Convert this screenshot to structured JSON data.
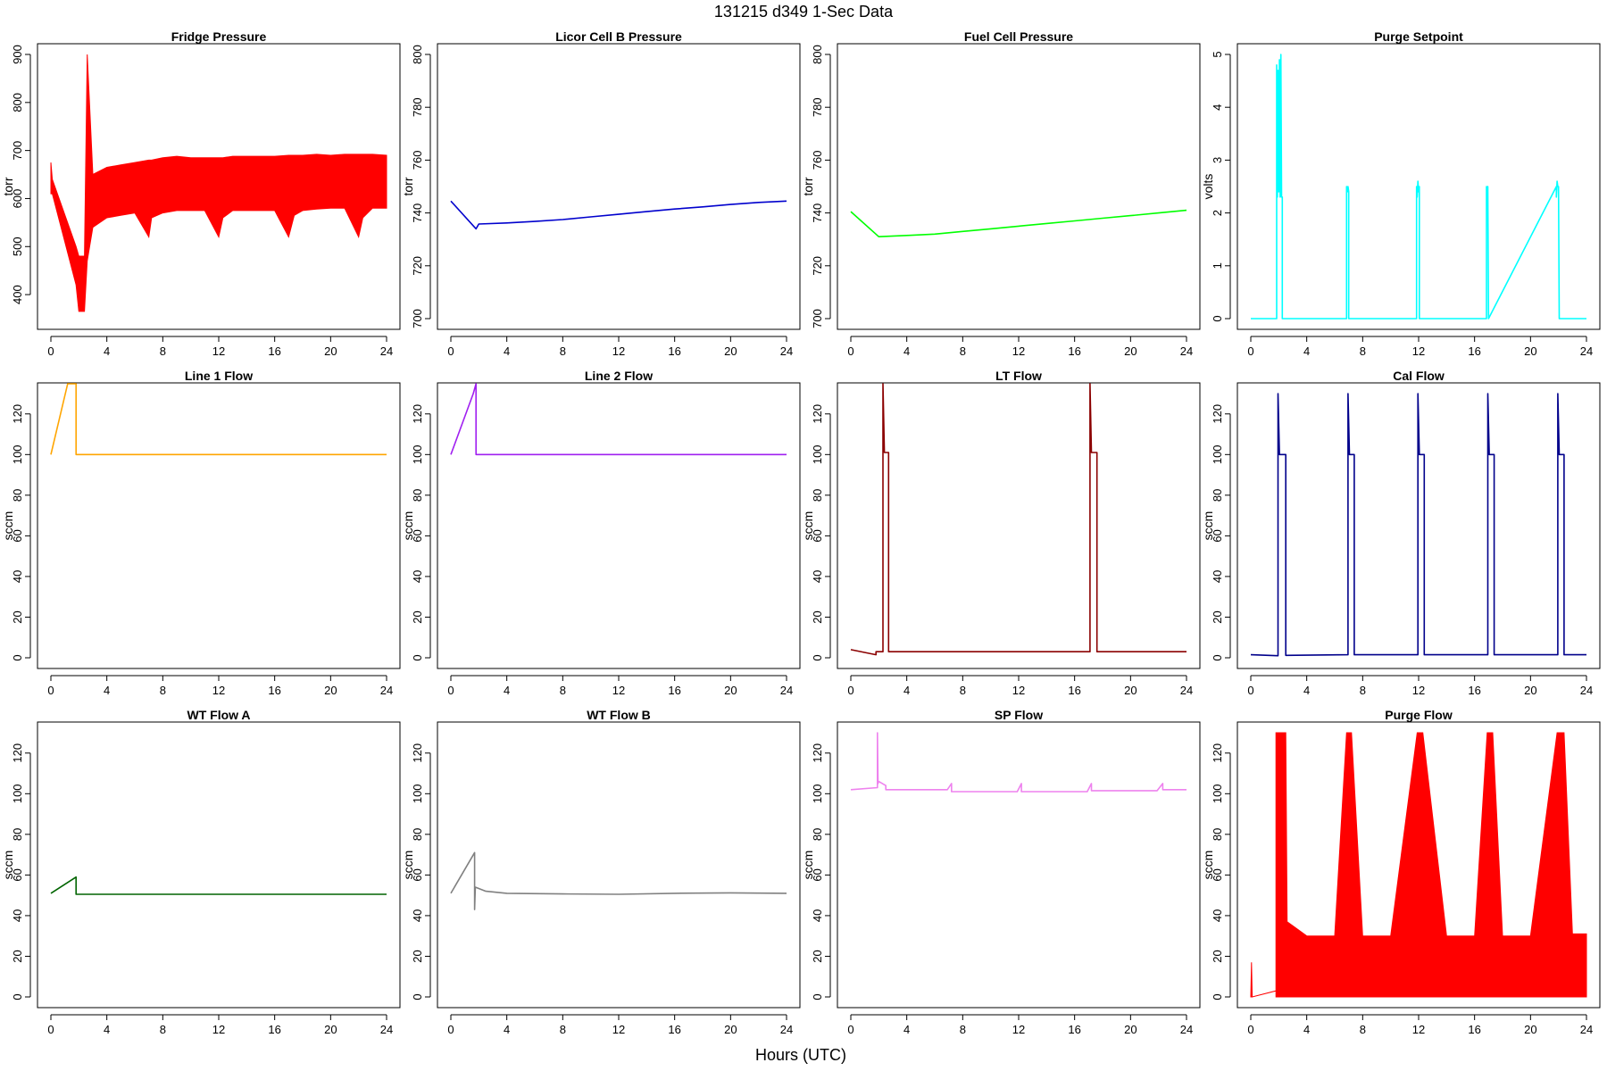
{
  "figure": {
    "title": "131215   d349   1-Sec Data",
    "xlabel": "Hours (UTC)"
  },
  "chart_data": [
    {
      "type": "line",
      "title": "Fridge Pressure",
      "ylabel": "torr",
      "color": "#ff0000",
      "xlim": [
        0,
        24
      ],
      "ylim": [
        350,
        900
      ],
      "xticks": [
        0,
        4,
        8,
        12,
        16,
        20,
        24
      ],
      "yticks": [
        400,
        500,
        600,
        700,
        800,
        900
      ],
      "series": [
        {
          "band": true,
          "x": [
            0,
            0.1,
            1.8,
            2.0,
            2.4,
            2.6,
            3,
            4,
            5,
            6,
            7,
            7.2,
            8,
            9,
            10,
            11,
            12,
            12.3,
            13,
            14,
            15,
            16,
            17,
            17.4,
            18,
            19,
            20,
            21,
            22,
            22.3,
            23,
            24
          ],
          "lo": [
            610,
            610,
            420,
            365,
            365,
            470,
            540,
            560,
            565,
            570,
            520,
            560,
            570,
            575,
            575,
            575,
            520,
            560,
            575,
            575,
            575,
            575,
            520,
            565,
            575,
            578,
            580,
            580,
            520,
            560,
            580,
            580
          ],
          "hi": [
            675,
            640,
            500,
            480,
            480,
            900,
            650,
            665,
            670,
            675,
            680,
            680,
            685,
            688,
            685,
            685,
            685,
            685,
            688,
            688,
            688,
            688,
            690,
            690,
            690,
            692,
            690,
            692,
            692,
            692,
            692,
            690
          ]
        }
      ]
    },
    {
      "type": "line",
      "title": "Licor Cell B Pressure",
      "ylabel": "torr",
      "color": "#0000cd",
      "xlim": [
        0,
        24
      ],
      "ylim": [
        700,
        800
      ],
      "xticks": [
        0,
        4,
        8,
        12,
        16,
        20,
        24
      ],
      "yticks": [
        700,
        720,
        740,
        760,
        780,
        800
      ],
      "series": [
        {
          "x": [
            0,
            1.8,
            2.0,
            4,
            6,
            8,
            10,
            12,
            14,
            16,
            18,
            20,
            22,
            24
          ],
          "y": [
            744.5,
            734,
            735.8,
            736.2,
            736.8,
            737.5,
            738.5,
            739.5,
            740.5,
            741.5,
            742.3,
            743.2,
            744.0,
            744.5
          ]
        }
      ]
    },
    {
      "type": "line",
      "title": "Fuel Cell Pressure",
      "ylabel": "torr",
      "color": "#00ff00",
      "xlim": [
        0,
        24
      ],
      "ylim": [
        700,
        800
      ],
      "xticks": [
        0,
        4,
        8,
        12,
        16,
        20,
        24
      ],
      "yticks": [
        700,
        720,
        740,
        760,
        780,
        800
      ],
      "series": [
        {
          "x": [
            0,
            2,
            4,
            6,
            8,
            10,
            12,
            14,
            16,
            18,
            20,
            22,
            24
          ],
          "y": [
            740.5,
            731,
            731.5,
            732,
            733,
            734,
            735,
            736,
            737,
            738,
            739,
            740,
            741
          ]
        }
      ]
    },
    {
      "type": "line",
      "title": "Purge Setpoint",
      "ylabel": "volts",
      "color": "#00ffff",
      "xlim": [
        0,
        24
      ],
      "ylim": [
        0,
        5
      ],
      "xticks": [
        0,
        4,
        8,
        12,
        16,
        20,
        24
      ],
      "yticks": [
        0,
        1,
        2,
        3,
        4,
        5
      ],
      "series": [
        {
          "x": [
            0,
            1.85,
            1.85,
            1.9,
            1.95,
            2.0,
            2.05,
            2.1,
            2.15,
            2.2,
            2.25,
            2.25,
            6.85,
            6.85,
            6.9,
            6.95,
            7.0,
            7.0,
            11.85,
            11.85,
            11.9,
            11.95,
            12.0,
            12.05,
            12.05,
            16.85,
            16.85,
            16.9,
            16.95,
            17.0,
            17.0,
            21.85,
            21.85,
            21.9,
            21.95,
            22.0,
            22.05,
            22.05,
            24
          ],
          "y": [
            0,
            0,
            4.8,
            2.3,
            4.7,
            2.4,
            4.9,
            2.3,
            5.0,
            2.3,
            2.3,
            0,
            0,
            2.5,
            2.4,
            2.5,
            2.4,
            0,
            0,
            2.5,
            2.3,
            2.6,
            2.4,
            2.5,
            0,
            0,
            2.5,
            2.4,
            2.5,
            0,
            0,
            2.5,
            2.3,
            2.6,
            2.5,
            2.5,
            0,
            0,
            0
          ]
        }
      ]
    },
    {
      "type": "line",
      "title": "Line 1 Flow",
      "ylabel": "sccm",
      "color": "#ffa500",
      "xlim": [
        0,
        24
      ],
      "ylim": [
        0,
        130
      ],
      "xticks": [
        0,
        4,
        8,
        12,
        16,
        20,
        24
      ],
      "yticks": [
        0,
        20,
        40,
        60,
        80,
        100,
        120
      ],
      "series": [
        {
          "x": [
            0,
            1.2,
            1.8,
            1.8,
            24
          ],
          "y": [
            100,
            135,
            135,
            100,
            100
          ]
        }
      ]
    },
    {
      "type": "line",
      "title": "Line 2 Flow",
      "ylabel": "sccm",
      "color": "#a020f0",
      "xlim": [
        0,
        24
      ],
      "ylim": [
        0,
        130
      ],
      "xticks": [
        0,
        4,
        8,
        12,
        16,
        20,
        24
      ],
      "yticks": [
        0,
        20,
        40,
        60,
        80,
        100,
        120
      ],
      "series": [
        {
          "x": [
            0,
            1.6,
            1.8,
            1.8,
            24
          ],
          "y": [
            100,
            130,
            135,
            100,
            100
          ]
        }
      ]
    },
    {
      "type": "line",
      "title": "LT Flow",
      "ylabel": "sccm",
      "color": "#8b0000",
      "xlim": [
        0,
        24
      ],
      "ylim": [
        0,
        130
      ],
      "xticks": [
        0,
        4,
        8,
        12,
        16,
        20,
        24
      ],
      "yticks": [
        0,
        20,
        40,
        60,
        80,
        100,
        120
      ],
      "series": [
        {
          "x": [
            0,
            1.8,
            1.8,
            2.3,
            2.3,
            2.4,
            2.4,
            2.7,
            2.7,
            17.1,
            17.1,
            17.2,
            17.2,
            17.6,
            17.6,
            24
          ],
          "y": [
            4,
            1.5,
            3,
            3,
            135,
            101,
            101,
            101,
            3,
            3,
            135,
            101,
            101,
            101,
            3,
            3
          ]
        }
      ]
    },
    {
      "type": "line",
      "title": "Cal Flow",
      "ylabel": "sccm",
      "color": "#00008b",
      "xlim": [
        0,
        24
      ],
      "ylim": [
        0,
        130
      ],
      "xticks": [
        0,
        4,
        8,
        12,
        16,
        20,
        24
      ],
      "yticks": [
        0,
        20,
        40,
        60,
        80,
        100,
        120
      ],
      "series": [
        {
          "x": [
            0,
            1.9,
            1.95,
            1.95,
            2.05,
            2.5,
            2.5,
            6.95,
            6.95,
            7.05,
            7.4,
            7.4,
            11.95,
            11.95,
            12.05,
            12.4,
            12.4,
            16.95,
            16.95,
            17.05,
            17.4,
            17.4,
            21.95,
            21.95,
            22.05,
            22.4,
            22.4,
            24
          ],
          "y": [
            1.5,
            1.0,
            1.0,
            130,
            100,
            100,
            1.2,
            1.5,
            130,
            100,
            100,
            1.5,
            1.5,
            130,
            100,
            100,
            1.5,
            1.5,
            130,
            100,
            100,
            1.5,
            1.5,
            130,
            100,
            100,
            1.5,
            1.5
          ]
        }
      ]
    },
    {
      "type": "line",
      "title": "WT Flow A",
      "ylabel": "sccm",
      "color": "#006400",
      "xlim": [
        0,
        24
      ],
      "ylim": [
        0,
        130
      ],
      "xticks": [
        0,
        4,
        8,
        12,
        16,
        20,
        24
      ],
      "yticks": [
        0,
        20,
        40,
        60,
        80,
        100,
        120
      ],
      "series": [
        {
          "x": [
            0,
            1.8,
            1.8,
            24
          ],
          "y": [
            51,
            59,
            50.5,
            50.5
          ]
        }
      ]
    },
    {
      "type": "line",
      "title": "WT Flow B",
      "ylabel": "sccm",
      "color": "#808080",
      "xlim": [
        0,
        24
      ],
      "ylim": [
        0,
        130
      ],
      "xticks": [
        0,
        4,
        8,
        12,
        16,
        20,
        24
      ],
      "yticks": [
        0,
        20,
        40,
        60,
        80,
        100,
        120
      ],
      "series": [
        {
          "x": [
            0,
            1.7,
            1.7,
            1.75,
            2.5,
            4,
            8,
            12,
            16,
            20,
            24
          ],
          "y": [
            51,
            71,
            43,
            54,
            52,
            51,
            50.7,
            50.5,
            51,
            51.2,
            51
          ]
        }
      ]
    },
    {
      "type": "line",
      "title": "SP Flow",
      "ylabel": "sccm",
      "color": "#ee82ee",
      "xlim": [
        0,
        24
      ],
      "ylim": [
        0,
        130
      ],
      "xticks": [
        0,
        4,
        8,
        12,
        16,
        20,
        24
      ],
      "yticks": [
        0,
        20,
        40,
        60,
        80,
        100,
        120
      ],
      "series": [
        {
          "x": [
            0,
            1.9,
            1.9,
            1.95,
            2.0,
            2.5,
            2.5,
            6.9,
            7.2,
            7.2,
            11.9,
            12.2,
            12.2,
            16.9,
            17.2,
            17.2,
            21.9,
            22.3,
            22.3,
            24
          ],
          "y": [
            102,
            103,
            130,
            105,
            106,
            104,
            102,
            102,
            105,
            101,
            101,
            105,
            101,
            101,
            105,
            101.5,
            101.5,
            105,
            102,
            102
          ]
        }
      ]
    },
    {
      "type": "line",
      "title": "Purge Flow",
      "ylabel": "sccm",
      "color": "#ff0000",
      "xlim": [
        0,
        24
      ],
      "ylim": [
        0,
        130
      ],
      "xticks": [
        0,
        4,
        8,
        12,
        16,
        20,
        24
      ],
      "yticks": [
        0,
        20,
        40,
        60,
        80,
        100,
        120
      ],
      "series": [
        {
          "band": true,
          "x": [
            0,
            0.05,
            0.1,
            1.8,
            1.8,
            2.5,
            2.6,
            3,
            4,
            6,
            6.85,
            7.2,
            8,
            10,
            11.9,
            12.3,
            14,
            16,
            16.9,
            17.3,
            18,
            20,
            21.9,
            22.4,
            23,
            24
          ],
          "lo": [
            0,
            0,
            0,
            3,
            0,
            0,
            0,
            0,
            0,
            0,
            0,
            0,
            0,
            0,
            0,
            0,
            0,
            0,
            0,
            0,
            0,
            0,
            0,
            0,
            0,
            0
          ],
          "hi": [
            0,
            17,
            0,
            3,
            130,
            130,
            37,
            35,
            30,
            30,
            130,
            130,
            30,
            30,
            130,
            130,
            30,
            30,
            130,
            130,
            30,
            30,
            130,
            130,
            31,
            31
          ]
        }
      ]
    }
  ]
}
